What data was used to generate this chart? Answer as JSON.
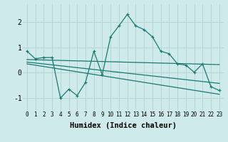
{
  "xlabel": "Humidex (Indice chaleur)",
  "background_color": "#ceeaea",
  "grid_color": "#b8d4d4",
  "line_color": "#1a7a6e",
  "xlim": [
    -0.5,
    23.5
  ],
  "ylim": [
    -1.5,
    2.7
  ],
  "line1_x": [
    0,
    1,
    2,
    3,
    4,
    5,
    6,
    7,
    8,
    9,
    10,
    11,
    12,
    13,
    14,
    15,
    16,
    17,
    18,
    19,
    20,
    21,
    22,
    23
  ],
  "line1_y": [
    0.85,
    0.55,
    0.6,
    0.6,
    -1.0,
    -0.65,
    -0.9,
    -0.38,
    0.85,
    -0.08,
    1.42,
    1.85,
    2.3,
    1.85,
    1.7,
    1.42,
    0.85,
    0.75,
    0.35,
    0.3,
    0.02,
    0.35,
    -0.55,
    -0.7
  ],
  "line2_x": [
    0,
    23
  ],
  "line2_y": [
    0.52,
    0.32
  ],
  "line3_x": [
    0,
    23
  ],
  "line3_y": [
    0.42,
    -0.42
  ],
  "line4_x": [
    0,
    23
  ],
  "line4_y": [
    0.35,
    -0.85
  ],
  "xticks": [
    0,
    1,
    2,
    3,
    4,
    5,
    6,
    7,
    8,
    9,
    10,
    11,
    12,
    13,
    14,
    15,
    16,
    17,
    18,
    19,
    20,
    21,
    22,
    23
  ],
  "yticks": [
    -1,
    0,
    1,
    2
  ]
}
